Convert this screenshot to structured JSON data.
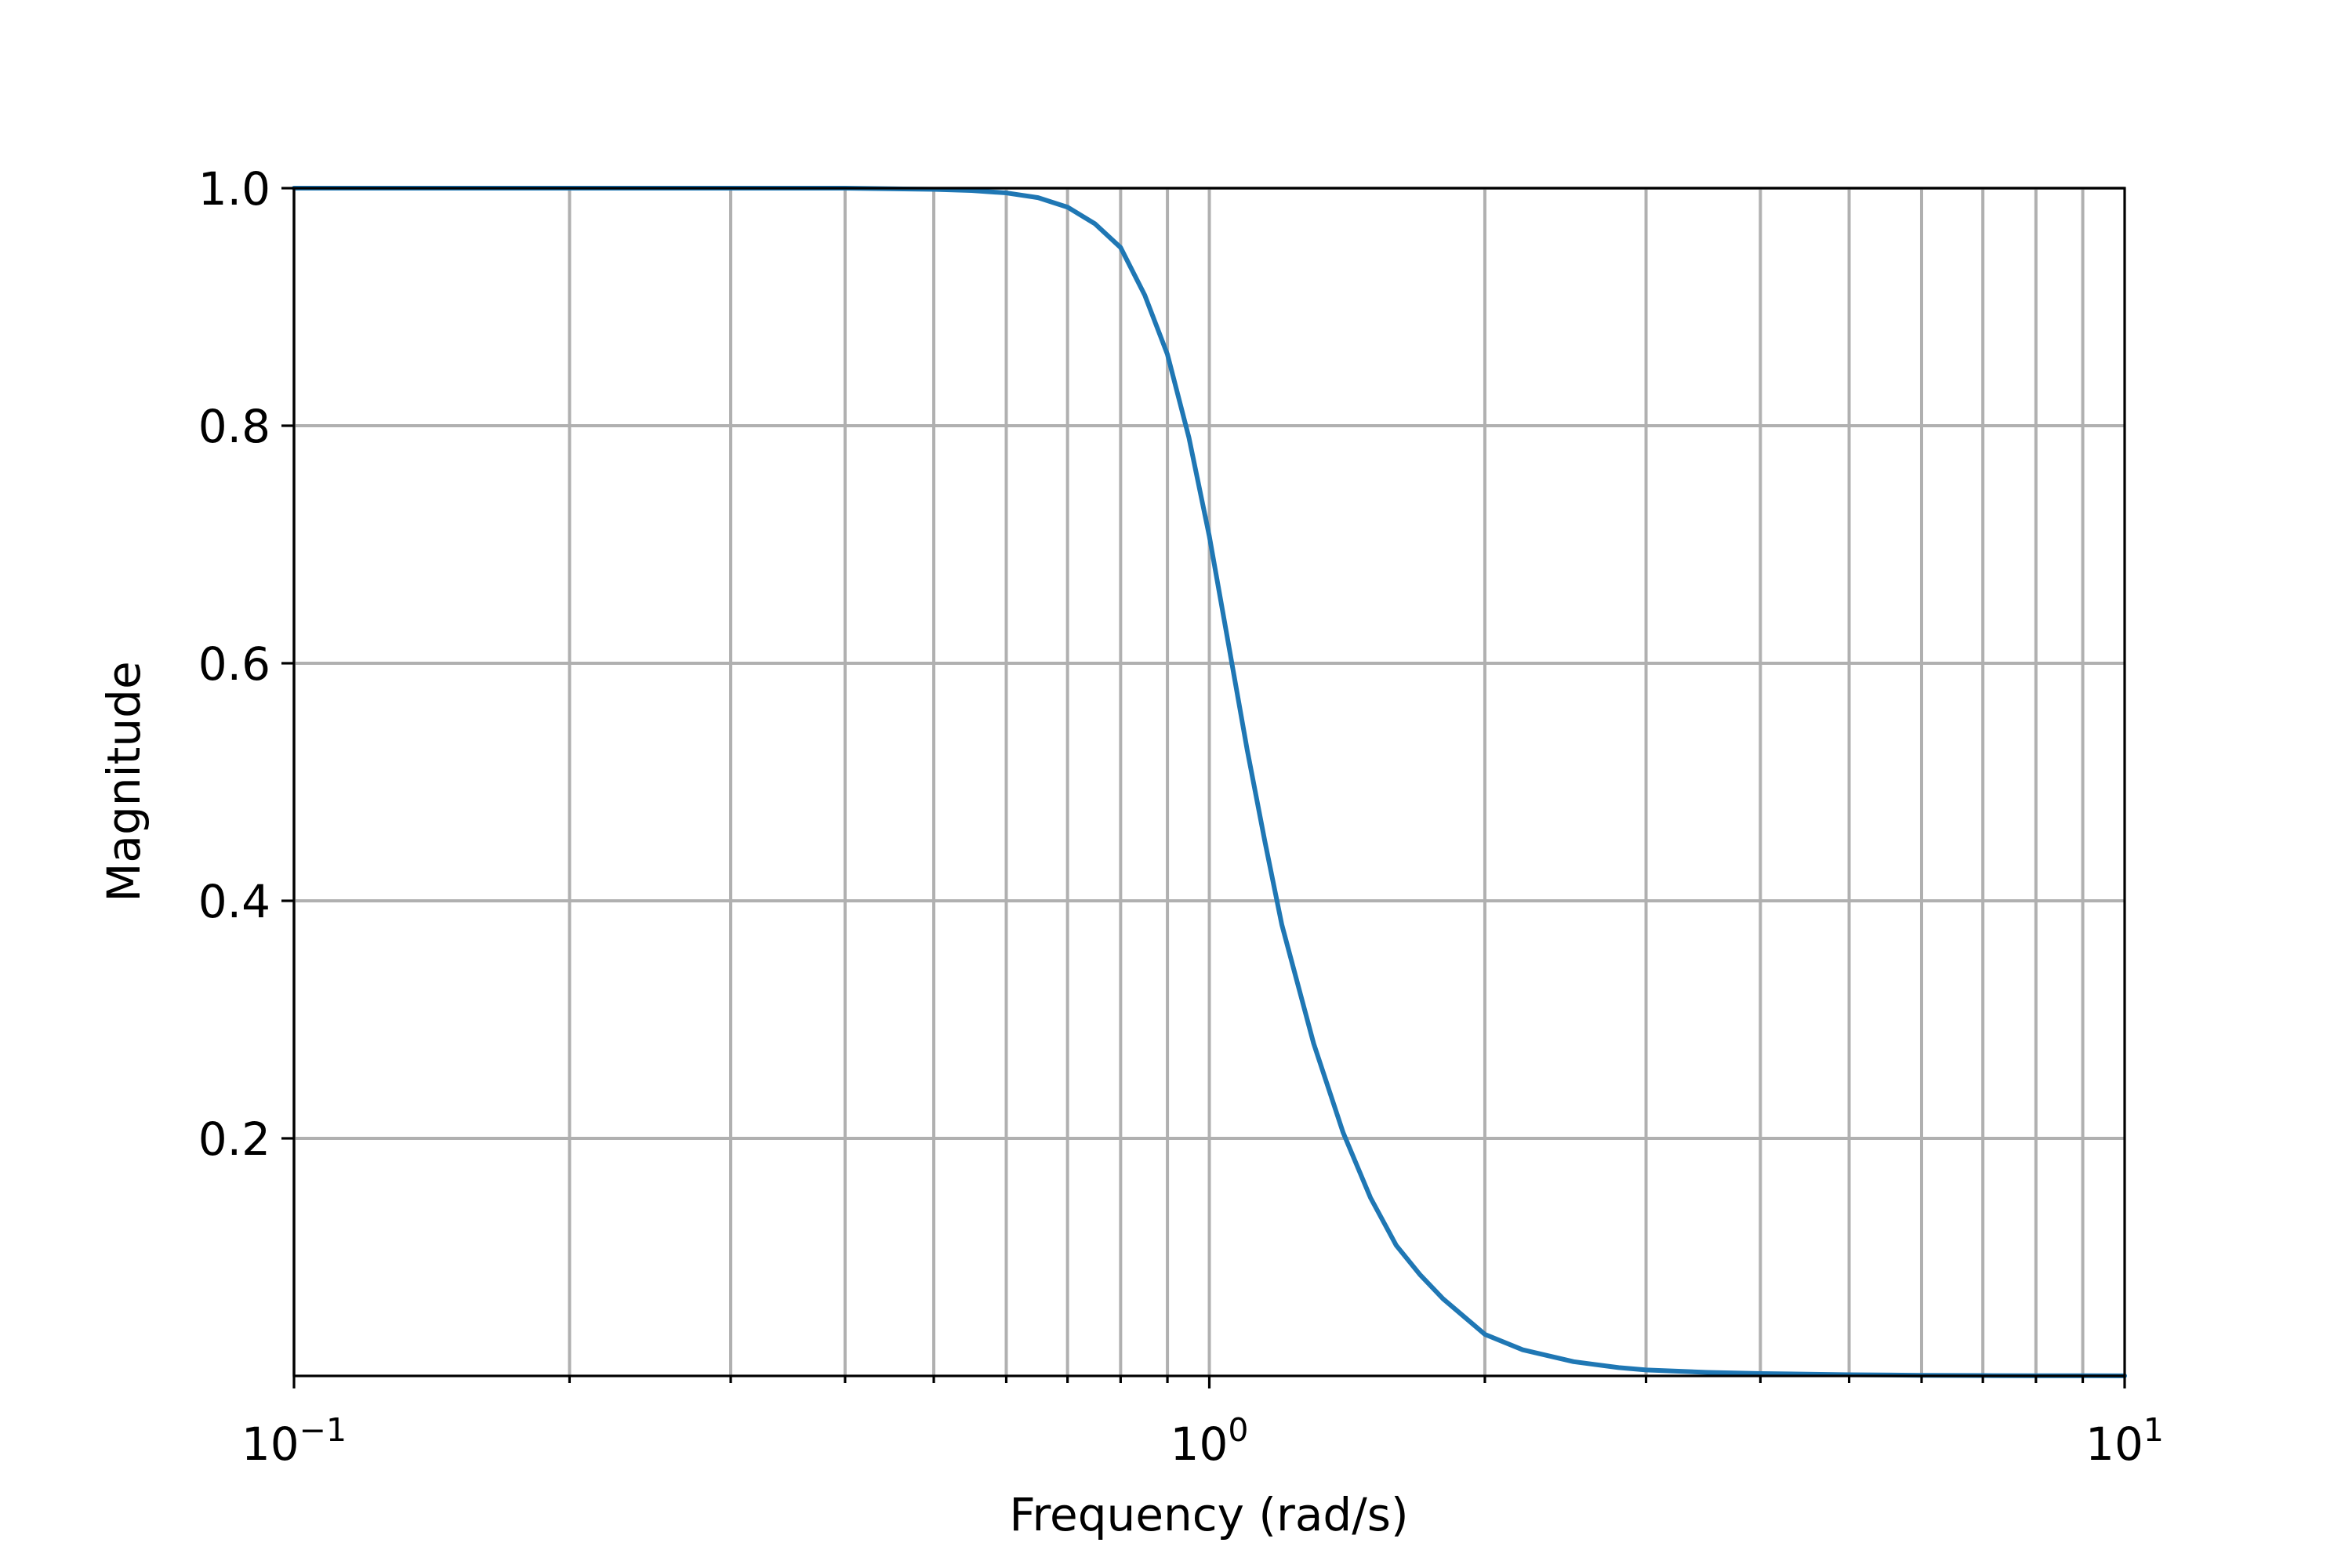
{
  "chart_data": {
    "type": "line",
    "xlabel": "Frequency (rad/s)",
    "ylabel": "Magnitude",
    "x_scale": "log",
    "xlim": [
      0.1,
      10
    ],
    "ylim": [
      0,
      1
    ],
    "grid": true,
    "x_ticks": [
      {
        "value": 0.1,
        "base": "10",
        "exponent": "−1"
      },
      {
        "value": 1,
        "base": "10",
        "exponent": "0"
      },
      {
        "value": 10,
        "base": "10",
        "exponent": "1"
      }
    ],
    "y_ticks": [
      {
        "value": 0.2,
        "label": "0.2"
      },
      {
        "value": 0.4,
        "label": "0.4"
      },
      {
        "value": 0.6,
        "label": "0.6"
      },
      {
        "value": 0.8,
        "label": "0.8"
      },
      {
        "value": 1.0,
        "label": "1.0"
      }
    ],
    "series": [
      {
        "color": "#1f77b4",
        "x": [
          0.1,
          0.2,
          0.3,
          0.4,
          0.5,
          0.55,
          0.6,
          0.65,
          0.7,
          0.75,
          0.8,
          0.85,
          0.9,
          0.95,
          1.0,
          1.05,
          1.1,
          1.15,
          1.2,
          1.3,
          1.4,
          1.5,
          1.6,
          1.7,
          1.8,
          2.0,
          2.2,
          2.5,
          2.8,
          3.0,
          3.5,
          4.0,
          5.0,
          6.0,
          7.0,
          8.0,
          10.0
        ],
        "y": [
          1.0,
          1.0,
          1.0,
          1.0,
          0.999,
          0.998,
          0.996,
          0.992,
          0.984,
          0.97,
          0.95,
          0.91,
          0.86,
          0.79,
          0.707,
          0.615,
          0.527,
          0.45,
          0.38,
          0.28,
          0.205,
          0.15,
          0.11,
          0.085,
          0.065,
          0.035,
          0.022,
          0.012,
          0.007,
          0.005,
          0.003,
          0.002,
          0.001,
          0.0005,
          0.0003,
          0.0002,
          0.0001
        ]
      }
    ]
  }
}
